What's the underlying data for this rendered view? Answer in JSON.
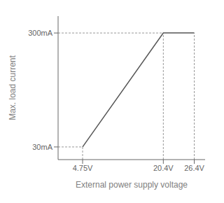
{
  "chart_data": {
    "type": "line",
    "xlabel": "External power supply voltage",
    "ylabel": "Max. load current",
    "x": [
      4.75,
      20.4,
      26.4
    ],
    "values": [
      30,
      300,
      300
    ],
    "color": "#555555",
    "xlim": [
      0,
      28.5
    ],
    "ylim": [
      0,
      340
    ],
    "xticks": [
      {
        "value": 4.75,
        "label": "4.75V"
      },
      {
        "value": 20.4,
        "label": "20.4V"
      },
      {
        "value": 26.4,
        "label": "26.4V"
      }
    ],
    "yticks": [
      {
        "value": 30,
        "label": "30mA"
      },
      {
        "value": 300,
        "label": "300mA"
      }
    ],
    "grid": false
  }
}
